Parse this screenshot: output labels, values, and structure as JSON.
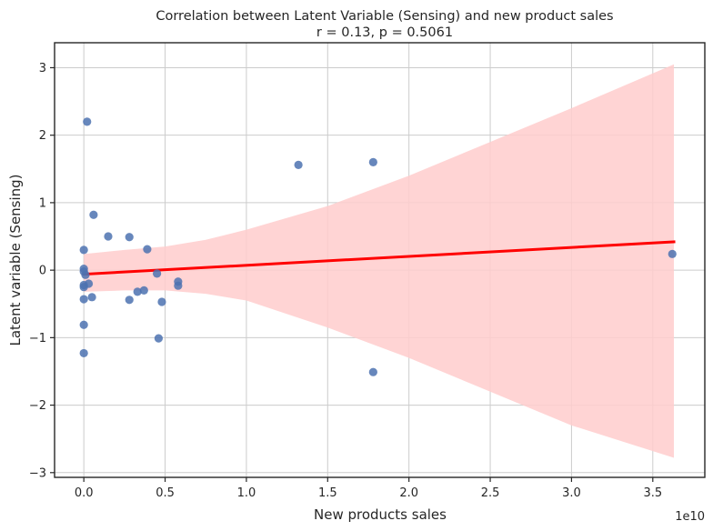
{
  "chart_data": {
    "type": "scatter",
    "title": "Correlation between Latent Variable (Sensing) and new product sales",
    "subtitle": "r = 0.13, p = 0.5061",
    "xlabel": "New products sales",
    "ylabel": "Latent variable (Sensing)",
    "x_offset_label": "1e10",
    "x_scale_note": "x values in units of 1e10",
    "xlim": [
      -0.18,
      3.82
    ],
    "ylim": [
      -3.07,
      3.37
    ],
    "x_ticks": [
      0.0,
      0.5,
      1.0,
      1.5,
      2.0,
      2.5,
      3.0,
      3.5
    ],
    "x_tick_labels": [
      "0.0",
      "0.5",
      "1.0",
      "1.5",
      "2.0",
      "2.5",
      "3.0",
      "3.5"
    ],
    "y_ticks": [
      -3,
      -2,
      -1,
      0,
      1,
      2,
      3
    ],
    "y_tick_labels": [
      "−3",
      "−2",
      "−1",
      "0",
      "1",
      "2",
      "3"
    ],
    "grid": true,
    "points": [
      {
        "x": 0.02,
        "y": 2.2
      },
      {
        "x": 0.06,
        "y": 0.82
      },
      {
        "x": 0.15,
        "y": 0.5
      },
      {
        "x": 0.28,
        "y": 0.49
      },
      {
        "x": 0.39,
        "y": 0.31
      },
      {
        "x": 0.0,
        "y": 0.3
      },
      {
        "x": 0.0,
        "y": 0.02
      },
      {
        "x": 0.0,
        "y": -0.02
      },
      {
        "x": 0.01,
        "y": -0.07
      },
      {
        "x": 0.45,
        "y": -0.05
      },
      {
        "x": 0.58,
        "y": -0.17
      },
      {
        "x": 0.58,
        "y": -0.23
      },
      {
        "x": 0.0,
        "y": -0.22
      },
      {
        "x": 0.0,
        "y": -0.25
      },
      {
        "x": 0.03,
        "y": -0.2
      },
      {
        "x": 0.33,
        "y": -0.32
      },
      {
        "x": 0.37,
        "y": -0.3
      },
      {
        "x": 0.0,
        "y": -0.43
      },
      {
        "x": 0.05,
        "y": -0.4
      },
      {
        "x": 0.28,
        "y": -0.44
      },
      {
        "x": 0.48,
        "y": -0.47
      },
      {
        "x": 0.0,
        "y": -0.81
      },
      {
        "x": 0.46,
        "y": -1.01
      },
      {
        "x": 0.0,
        "y": -1.23
      },
      {
        "x": 1.32,
        "y": 1.56
      },
      {
        "x": 1.78,
        "y": 1.6
      },
      {
        "x": 1.78,
        "y": -1.51
      },
      {
        "x": 3.62,
        "y": 0.24
      }
    ],
    "regression_line": {
      "x": [
        0.0,
        3.63
      ],
      "y": [
        -0.06,
        0.42
      ]
    },
    "confidence_band": {
      "x": [
        0.0,
        0.25,
        0.5,
        0.75,
        1.0,
        1.5,
        2.0,
        2.5,
        3.0,
        3.63
      ],
      "upper": [
        0.24,
        0.3,
        0.35,
        0.45,
        0.6,
        0.95,
        1.4,
        1.9,
        2.4,
        3.05
      ],
      "lower": [
        -0.32,
        -0.3,
        -0.3,
        -0.35,
        -0.45,
        -0.85,
        -1.3,
        -1.8,
        -2.3,
        -2.78
      ]
    },
    "colors": {
      "points": "#4c72b0",
      "regression_line": "#ff0000",
      "confidence_band": "#ffcccc",
      "grid": "#cccccc",
      "axes": "#262626",
      "text": "#262626"
    }
  }
}
